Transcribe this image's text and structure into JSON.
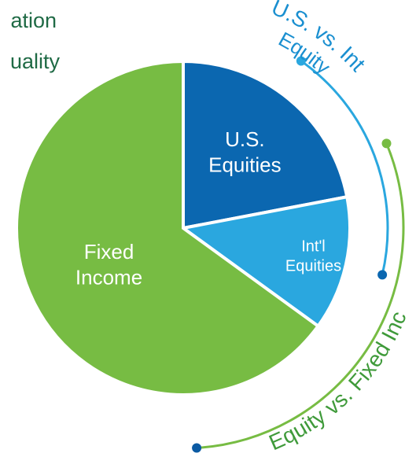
{
  "chart_data": {
    "type": "pie",
    "title_lines": [
      "ation",
      "uality"
    ],
    "categories": [
      "U.S. Equities",
      "Int'l Equities",
      "Fixed Income"
    ],
    "values": [
      22,
      13,
      65
    ],
    "colors": [
      "#0b67b0",
      "#2aa7df",
      "#77bc43"
    ],
    "annotations": [
      {
        "text": "U.S. vs. Int",
        "color": "#1a8fd0"
      },
      {
        "text": "Equity",
        "color": "#1a8fd0"
      },
      {
        "text": "Equity vs. Fixed Inc",
        "color": "#3f9a3a"
      }
    ]
  }
}
